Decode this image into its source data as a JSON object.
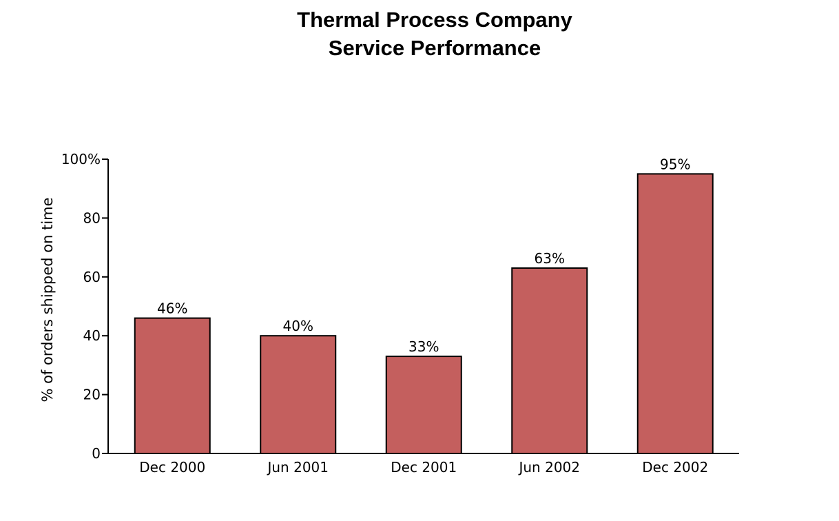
{
  "chart_data": {
    "type": "bar",
    "title": "Thermal Process Company",
    "subtitle": "Service Performance",
    "ylabel": "% of orders shipped on time",
    "xlabel": "",
    "categories": [
      "Dec 2000",
      "Jun 2001",
      "Dec 2001",
      "Jun 2002",
      "Dec 2002"
    ],
    "values": [
      46,
      40,
      33,
      63,
      95
    ],
    "data_labels": [
      "46%",
      "40%",
      "33%",
      "63%",
      "95%"
    ],
    "ylim": [
      0,
      100
    ],
    "yticks": [
      0,
      20,
      40,
      60,
      80,
      100
    ],
    "ytick_labels": [
      "0",
      "20",
      "40",
      "60",
      "80",
      "100%"
    ],
    "bar_color": "#c45f5e",
    "grid": false,
    "legend": "none"
  }
}
